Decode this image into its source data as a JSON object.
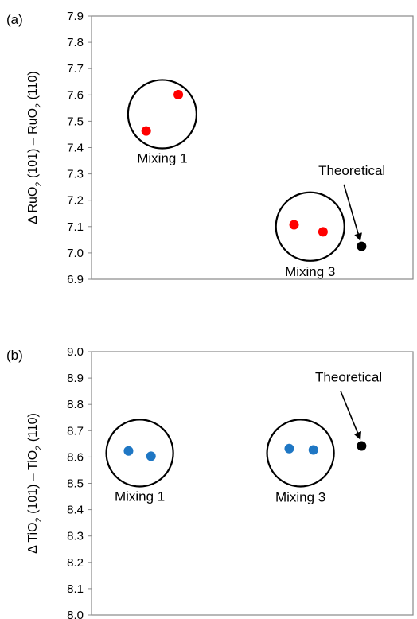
{
  "chart_data": [
    {
      "type": "scatter",
      "panel_label": "(a)",
      "ylabel": {
        "prefix": "Δ RuO",
        "sub1": "2",
        "mid": " (101) – RuO",
        "sub2": "2",
        "suffix": " (110)"
      },
      "xlim": [
        0,
        10
      ],
      "ylim": [
        6.9,
        7.9
      ],
      "yticks": [
        "6.9",
        "7.0",
        "7.1",
        "7.2",
        "7.3",
        "7.4",
        "7.5",
        "7.6",
        "7.7",
        "7.8",
        "7.9"
      ],
      "grid": false,
      "series": [
        {
          "color": "#ff0000",
          "points": [
            {
              "x": 1.7,
              "y": 7.463
            },
            {
              "x": 2.7,
              "y": 7.601
            },
            {
              "x": 6.3,
              "y": 7.107
            },
            {
              "x": 7.2,
              "y": 7.08
            }
          ]
        },
        {
          "color": "#000000",
          "points": [
            {
              "x": 8.4,
              "y": 7.025
            }
          ]
        }
      ],
      "annotations": [
        {
          "text": "Mixing 1",
          "group": "mixing1",
          "circle_center": {
            "x": 2.2,
            "y": 7.527
          },
          "circle_radius_y": 0.13
        },
        {
          "text": "Mixing 3",
          "group": "mixing3",
          "circle_center": {
            "x": 6.8,
            "y": 7.1
          },
          "circle_radius_y": 0.13
        },
        {
          "text": "Theoretical",
          "group": "theoretical",
          "arrow_to": {
            "x": 8.35,
            "y": 7.05
          },
          "arrow_from": {
            "x": 7.85,
            "y": 7.26
          }
        }
      ]
    },
    {
      "type": "scatter",
      "panel_label": "(b)",
      "ylabel": {
        "prefix": "Δ TiO",
        "sub1": "2",
        "mid": " (101) – TiO",
        "sub2": "2",
        "suffix": " (110)"
      },
      "xlim": [
        0,
        10
      ],
      "ylim": [
        8.0,
        9.0
      ],
      "yticks": [
        "8.0",
        "8.1",
        "8.2",
        "8.3",
        "8.4",
        "8.5",
        "8.6",
        "8.7",
        "8.8",
        "8.9",
        "9.0"
      ],
      "grid": false,
      "series": [
        {
          "color": "#1f77c4",
          "points": [
            {
              "x": 1.15,
              "y": 8.623
            },
            {
              "x": 1.85,
              "y": 8.603
            },
            {
              "x": 6.15,
              "y": 8.632
            },
            {
              "x": 6.9,
              "y": 8.627
            }
          ]
        },
        {
          "color": "#000000",
          "points": [
            {
              "x": 8.4,
              "y": 8.642
            }
          ]
        }
      ],
      "annotations": [
        {
          "text": "Mixing 1",
          "group": "mixing1",
          "circle_center": {
            "x": 1.5,
            "y": 8.615
          },
          "circle_radius_y": 0.127
        },
        {
          "text": "Mixing 3",
          "group": "mixing3",
          "circle_center": {
            "x": 6.5,
            "y": 8.615
          },
          "circle_radius_y": 0.127
        },
        {
          "text": "Theoretical",
          "group": "theoretical",
          "arrow_to": {
            "x": 8.35,
            "y": 8.67
          },
          "arrow_from": {
            "x": 7.75,
            "y": 8.85
          }
        }
      ]
    }
  ]
}
